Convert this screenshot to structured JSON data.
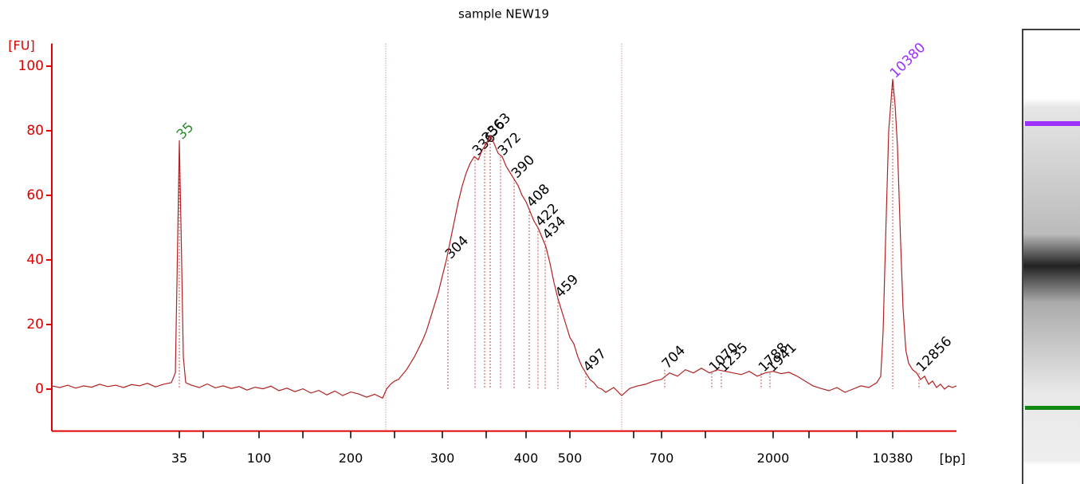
{
  "chart_data": {
    "type": "line",
    "title": "sample NEW19",
    "ylabel": "[FU]",
    "xlabel": "[bp]",
    "ylim": [
      -13,
      107
    ],
    "yticks": [
      0,
      20,
      40,
      60,
      80,
      100
    ],
    "xlim": [
      0,
      227
    ],
    "xticks": [
      {
        "value": 32,
        "label": "35"
      },
      {
        "value": 52,
        "label": "100"
      },
      {
        "value": 75,
        "label": "200"
      },
      {
        "value": 98,
        "label": "300"
      },
      {
        "value": 119,
        "label": "400"
      },
      {
        "value": 130,
        "label": "500"
      },
      {
        "value": 153,
        "label": "700"
      },
      {
        "value": 181,
        "label": "2000"
      },
      {
        "value": 211,
        "label": "10380"
      }
    ],
    "xminorticks": [
      38,
      63,
      86,
      109,
      146,
      164,
      190,
      202
    ],
    "region": [
      83.8,
      143
    ],
    "color": "#b22222",
    "axis_color": "#e00000",
    "series": [
      {
        "x": [
          0,
          2,
          4,
          6,
          8,
          10,
          12,
          14,
          16,
          18,
          20,
          22,
          24,
          26,
          28,
          30,
          31,
          31.5,
          32,
          32.5,
          33,
          33.6,
          35,
          37,
          39,
          41,
          43,
          45,
          47,
          49,
          51,
          53,
          55,
          57,
          59,
          61,
          63,
          65,
          67,
          69,
          71,
          73,
          75,
          77,
          79,
          81,
          83,
          84,
          85,
          86,
          87,
          88,
          89,
          90,
          91,
          92,
          93,
          94,
          95,
          96,
          97,
          98,
          99,
          100,
          101,
          102,
          103,
          104,
          105,
          106,
          107,
          108,
          109,
          110,
          111,
          112,
          113,
          114,
          115,
          116,
          117,
          118,
          119,
          120,
          121,
          122,
          123,
          124,
          125,
          126,
          127,
          128,
          129,
          130,
          131,
          132,
          133,
          134,
          135,
          136,
          137,
          138,
          139,
          141,
          143,
          145,
          147,
          149,
          151,
          153,
          155,
          157,
          159,
          161,
          163,
          165,
          167,
          169,
          171,
          173,
          175,
          177,
          179,
          181,
          183,
          185,
          187,
          189,
          191,
          193,
          195,
          197,
          199,
          201,
          203,
          205,
          207,
          208,
          208.6,
          209.3,
          210,
          211,
          211.6,
          212.2,
          213,
          213.6,
          214.3,
          215,
          216,
          217,
          218,
          219,
          220,
          221,
          222,
          223,
          224,
          225,
          226,
          227
        ],
        "values": [
          1,
          0.5,
          1.2,
          0.3,
          1,
          0.6,
          1.5,
          0.8,
          1.2,
          0.5,
          1.4,
          1,
          1.8,
          0.7,
          1.5,
          2,
          5,
          40,
          77,
          45,
          10,
          2,
          1.2,
          0.5,
          1.6,
          0.4,
          1.0,
          0.2,
          0.8,
          -0.3,
          0.6,
          0.1,
          0.9,
          -0.5,
          0.3,
          -0.8,
          0.1,
          -1.2,
          -0.4,
          -1.8,
          -0.6,
          -2,
          -0.9,
          -1.5,
          -2.5,
          -1.6,
          -2.8,
          0,
          1.5,
          2.5,
          3,
          4.5,
          6,
          8,
          10,
          12.5,
          15,
          18,
          22,
          26,
          30,
          35,
          40,
          46,
          52,
          58,
          63,
          67,
          70,
          72,
          71,
          74,
          76,
          78.5,
          76,
          73,
          72,
          69,
          67,
          65,
          63,
          60,
          58,
          55,
          52,
          50,
          47,
          44,
          39,
          33,
          28,
          24,
          20,
          16,
          14,
          10,
          7,
          5,
          3,
          2,
          0.5,
          0,
          -1,
          0.5,
          -2,
          0.2,
          1,
          1.5,
          2.5,
          3,
          5,
          4,
          6,
          5,
          6.5,
          5,
          6,
          5.5,
          5,
          4.5,
          5.5,
          4,
          5,
          5.5,
          4.8,
          5.2,
          4,
          2.5,
          1,
          0.2,
          -0.5,
          0.5,
          -1,
          0,
          1,
          0.5,
          2,
          4,
          18,
          50,
          80,
          96,
          88,
          75,
          45,
          25,
          12,
          8,
          6,
          5,
          3,
          4,
          1.5,
          2.5,
          0.5,
          1.5,
          0,
          1,
          0.5,
          1
        ]
      }
    ],
    "peaks": {
      "labels": [
        "35",
        "304",
        "336",
        "356",
        "363",
        "372",
        "390",
        "408",
        "422",
        "434",
        "459",
        "497",
        "704",
        "1070",
        "1235",
        "1788",
        "1941",
        "10380",
        "12856"
      ],
      "x": [
        32,
        99.4,
        106.2,
        108.6,
        110,
        112.6,
        116,
        119.8,
        122,
        123.8,
        127,
        134,
        153.8,
        165.6,
        168,
        178,
        180.2,
        211,
        217.6
      ],
      "values": [
        77,
        40,
        72,
        76,
        78,
        72,
        65,
        56,
        50,
        46,
        28,
        5,
        6,
        5,
        5,
        5,
        5,
        96,
        5
      ],
      "colors": [
        "#2e8b2e",
        "#000000",
        "#000000",
        "#000000",
        "#000000",
        "#000000",
        "#000000",
        "#000000",
        "#000000",
        "#000000",
        "#000000",
        "#000000",
        "#000000",
        "#000000",
        "#000000",
        "#000000",
        "#000000",
        "#9b30ff",
        "#000000"
      ]
    }
  }
}
